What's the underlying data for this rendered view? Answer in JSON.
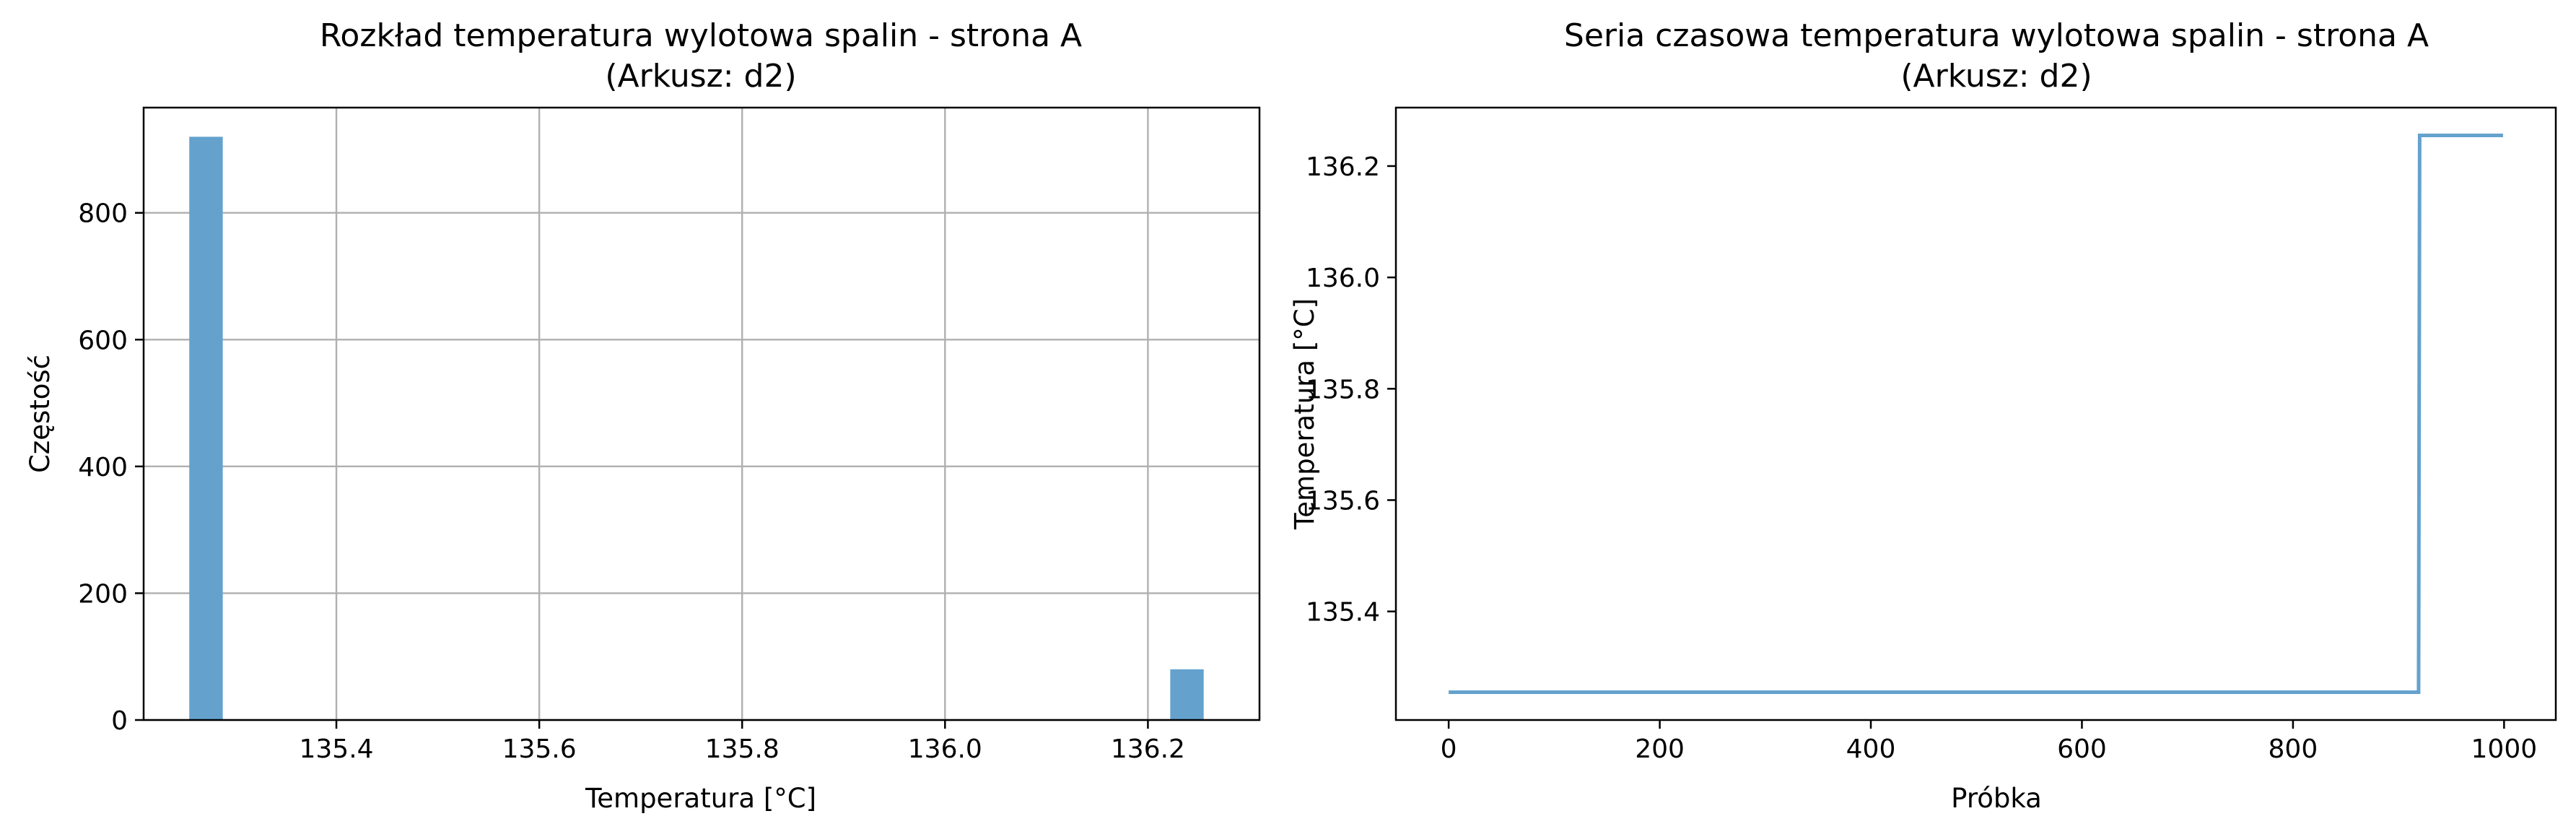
{
  "chart_data": [
    {
      "type": "bar",
      "title": "Rozkład temperatura wylotowa spalin - strona A",
      "subtitle": "(Arkusz: d2)",
      "xlabel": "Temperatura [°C]",
      "ylabel": "Częstość",
      "xlim": [
        135.21,
        136.31
      ],
      "ylim": [
        0,
        966
      ],
      "grid": true,
      "color": "#64a2cd",
      "xticks": [
        135.4,
        135.6,
        135.8,
        136.0,
        136.2
      ],
      "xtick_labels": [
        "135.4",
        "135.6",
        "135.8",
        "136.0",
        "136.2"
      ],
      "yticks": [
        0,
        200,
        400,
        600,
        800
      ],
      "ytick_labels": [
        "0",
        "200",
        "400",
        "600",
        "800"
      ],
      "bins": [
        {
          "x0": 135.255,
          "x1": 135.288,
          "count": 920
        },
        {
          "x0": 136.222,
          "x1": 136.255,
          "count": 80
        }
      ]
    },
    {
      "type": "line",
      "title": "Seria czasowa temperatura wylotowa spalin - strona A",
      "subtitle": "(Arkusz: d2)",
      "xlabel": "Próbka",
      "ylabel": "Temperatura [°C]",
      "xlim": [
        -50,
        1049
      ],
      "ylim": [
        135.205,
        136.305
      ],
      "grid": false,
      "color": "#64a2cd",
      "xticks": [
        0,
        200,
        400,
        600,
        800,
        1000
      ],
      "xtick_labels": [
        "0",
        "200",
        "400",
        "600",
        "800",
        "1000"
      ],
      "yticks": [
        135.4,
        135.6,
        135.8,
        136.0,
        136.2
      ],
      "ytick_labels": [
        "135.4",
        "135.6",
        "135.8",
        "136.0",
        "136.2"
      ],
      "series": [
        {
          "x": [
            0,
            919,
            920,
            999
          ],
          "y": [
            135.255,
            135.255,
            136.255,
            136.255
          ]
        }
      ]
    }
  ]
}
